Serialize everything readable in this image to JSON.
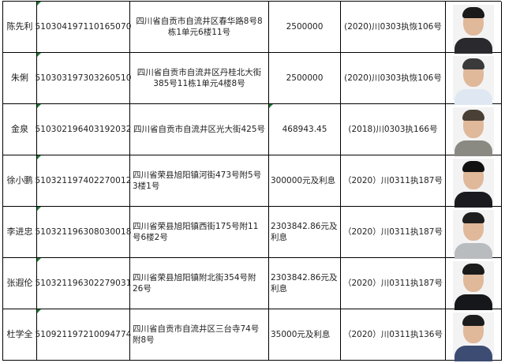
{
  "rows": [
    {
      "name": "陈先利",
      "id": "510304197110165070",
      "address": "四川省自贡市自流井区春华路8号8栋1单元6楼11号",
      "amount": "2500000",
      "case": "(2020)川0303执恢106号",
      "photo_shirt": "#2a2a2e",
      "hair": "#1a1a1a"
    },
    {
      "name": "朱俐",
      "id": "510303197303260510",
      "address": "四川省自贡市自流井区丹桂北大街385号11栋1单元4楼8号",
      "amount": "2500000",
      "case": "(2020)川0303执恢106号",
      "photo_shirt": "#dfe8f2",
      "hair": "#3a3a3a"
    },
    {
      "name": "金泉",
      "id": "510302196403192032",
      "address": "四川省自贡市自流井区光大街425号",
      "amount": "468943.45",
      "case": "(2018)川0303执166号",
      "photo_shirt": "#8a8a82",
      "hair": "#4a4036"
    },
    {
      "name": "徐小鹏",
      "id": "510321197402270012",
      "address": "四川省荣县旭阳镇河街473号附5号3楼1号",
      "amount": "300000元及利息",
      "case": "（2020）川0311执187号",
      "photo_shirt": "#1b1b1f",
      "hair": "#111"
    },
    {
      "name": "李进忠",
      "id": "510321196308030018",
      "address": "四川省荣县旭阳镇西街175号附11号6楼2号",
      "amount": "2303842.86元及利息",
      "case": "（2020）川0311执187号",
      "photo_shirt": "#b9bcbf",
      "hair": "#1e1e1e"
    },
    {
      "name": "张遐伦",
      "id": "510321196302279031",
      "address": "四川省荣县旭阳镇附北街354号附26号",
      "amount": "2303842.86元及利息",
      "case": "（2020）川0311执187号",
      "photo_shirt": "#15171a",
      "hair": "#1a1a1a"
    },
    {
      "name": "杜学全",
      "id": "510921197210094774",
      "address": "四川省自贡市自流井区三台寺74号附8号",
      "amount": "35000元及利息",
      "case": "（2020）川0311执136号",
      "photo_shirt": "#3c4c72",
      "hair": "#1c1c1c"
    }
  ],
  "colors": {
    "border": "#000000",
    "comment_marker": "#1e7b34"
  }
}
